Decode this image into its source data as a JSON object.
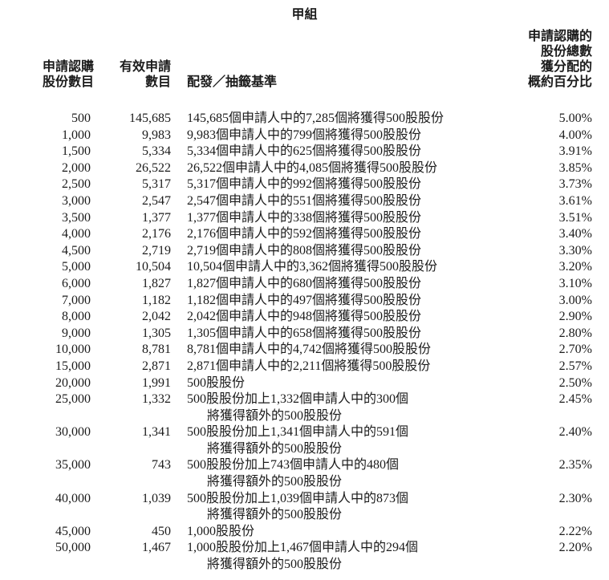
{
  "page": {
    "group_title": "甲組"
  },
  "table": {
    "headers": {
      "shares_applied": [
        "申請認購",
        "股份數目"
      ],
      "valid_applications": [
        "有效申請",
        "數目"
      ],
      "basis": "配發／抽籤基準",
      "percent": [
        "申請認購的",
        "股份總數",
        "獲分配的",
        "概約百分比"
      ]
    },
    "rows": [
      {
        "shares": "500",
        "applications": "145,685",
        "basis": [
          "145,685個申請人中的7,285個將獲得500股股份"
        ],
        "percent": "5.00%"
      },
      {
        "shares": "1,000",
        "applications": "9,983",
        "basis": [
          "9,983個申請人中的799個將獲得500股股份"
        ],
        "percent": "4.00%"
      },
      {
        "shares": "1,500",
        "applications": "5,334",
        "basis": [
          "5,334個申請人中的625個將獲得500股股份"
        ],
        "percent": "3.91%"
      },
      {
        "shares": "2,000",
        "applications": "26,522",
        "basis": [
          "26,522個申請人中的4,085個將獲得500股股份"
        ],
        "percent": "3.85%"
      },
      {
        "shares": "2,500",
        "applications": "5,317",
        "basis": [
          "5,317個申請人中的992個將獲得500股股份"
        ],
        "percent": "3.73%"
      },
      {
        "shares": "3,000",
        "applications": "2,547",
        "basis": [
          "2,547個申請人中的551個將獲得500股股份"
        ],
        "percent": "3.61%"
      },
      {
        "shares": "3,500",
        "applications": "1,377",
        "basis": [
          "1,377個申請人中的338個將獲得500股股份"
        ],
        "percent": "3.51%"
      },
      {
        "shares": "4,000",
        "applications": "2,176",
        "basis": [
          "2,176個申請人中的592個將獲得500股股份"
        ],
        "percent": "3.40%"
      },
      {
        "shares": "4,500",
        "applications": "2,719",
        "basis": [
          "2,719個申請人中的808個將獲得500股股份"
        ],
        "percent": "3.30%"
      },
      {
        "shares": "5,000",
        "applications": "10,504",
        "basis": [
          "10,504個申請人中的3,362個將獲得500股股份"
        ],
        "percent": "3.20%"
      },
      {
        "shares": "6,000",
        "applications": "1,827",
        "basis": [
          "1,827個申請人中的680個將獲得500股股份"
        ],
        "percent": "3.10%"
      },
      {
        "shares": "7,000",
        "applications": "1,182",
        "basis": [
          "1,182個申請人中的497個將獲得500股股份"
        ],
        "percent": "3.00%"
      },
      {
        "shares": "8,000",
        "applications": "2,042",
        "basis": [
          "2,042個申請人中的948個將獲得500股股份"
        ],
        "percent": "2.90%"
      },
      {
        "shares": "9,000",
        "applications": "1,305",
        "basis": [
          "1,305個申請人中的658個將獲得500股股份"
        ],
        "percent": "2.80%"
      },
      {
        "shares": "10,000",
        "applications": "8,781",
        "basis": [
          "8,781個申請人中的4,742個將獲得500股股份"
        ],
        "percent": "2.70%"
      },
      {
        "shares": "15,000",
        "applications": "2,871",
        "basis": [
          "2,871個申請人中的2,211個將獲得500股股份"
        ],
        "percent": "2.57%"
      },
      {
        "shares": "20,000",
        "applications": "1,991",
        "basis": [
          "500股股份"
        ],
        "percent": "2.50%"
      },
      {
        "shares": "25,000",
        "applications": "1,332",
        "basis": [
          "500股股份加上1,332個申請人中的300個",
          "將獲得額外的500股股份"
        ],
        "percent": "2.45%"
      },
      {
        "shares": "30,000",
        "applications": "1,341",
        "basis": [
          "500股股份加上1,341個申請人中的591個",
          "將獲得額外的500股股份"
        ],
        "percent": "2.40%"
      },
      {
        "shares": "35,000",
        "applications": "743",
        "basis": [
          "500股股份加上743個申請人中的480個",
          "將獲得額外的500股股份"
        ],
        "percent": "2.35%"
      },
      {
        "shares": "40,000",
        "applications": "1,039",
        "basis": [
          "500股股份加上1,039個申請人中的873個",
          "將獲得額外的500股股份"
        ],
        "percent": "2.30%"
      },
      {
        "shares": "45,000",
        "applications": "450",
        "basis": [
          "1,000股股份"
        ],
        "percent": "2.22%"
      },
      {
        "shares": "50,000",
        "applications": "1,467",
        "basis": [
          "1,000股股份加上1,467個申請人中的294個",
          "將獲得額外的500股股份"
        ],
        "percent": "2.20%"
      }
    ]
  },
  "colors": {
    "text": "#1b1b1b",
    "background": "#ffffff"
  }
}
